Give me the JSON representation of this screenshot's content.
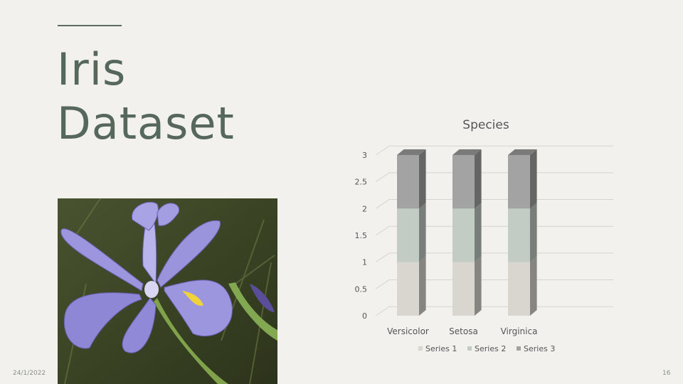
{
  "slide": {
    "title_line1": "Iris",
    "title_line2": "Dataset",
    "date": "24/1/2022",
    "page_number": "16"
  },
  "colors": {
    "title": "#56675b",
    "series1": "#d9d6d0",
    "series2": "#c2cbc4",
    "series3": "#a3a3a3"
  },
  "chart_data": {
    "type": "bar",
    "stacked": true,
    "three_d": true,
    "title": "Species",
    "categories": [
      "Versicolor",
      "Setosa",
      "Virginica"
    ],
    "series": [
      {
        "name": "Series 1",
        "values": [
          1,
          1,
          1
        ],
        "color": "#d9d6d0"
      },
      {
        "name": "Series 2",
        "values": [
          1,
          1,
          1
        ],
        "color": "#c2cbc4"
      },
      {
        "name": "Series 3",
        "values": [
          1,
          1,
          1
        ],
        "color": "#a3a3a3"
      }
    ],
    "ylim": [
      0,
      3
    ],
    "yticks": [
      "0",
      "0.5",
      "1",
      "1.5",
      "2",
      "2.5",
      "3"
    ],
    "grid": true,
    "legend_position": "bottom"
  }
}
